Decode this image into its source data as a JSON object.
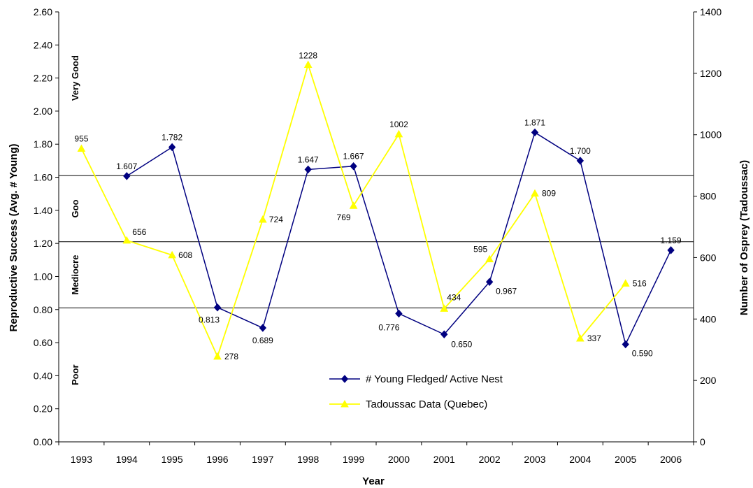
{
  "chart_data": {
    "type": "line",
    "xlabel": "Year",
    "ylabel_left": "Reproductive Success (Avg. # Young)",
    "ylabel_right": "Number of Osprey (Tadoussac)",
    "categories": [
      "1993",
      "1994",
      "1995",
      "1996",
      "1997",
      "1998",
      "1999",
      "2000",
      "2001",
      "2002",
      "2003",
      "2004",
      "2005",
      "2006"
    ],
    "ylim_left": [
      0,
      2.6
    ],
    "yticks_left": [
      "0.00",
      "0.20",
      "0.40",
      "0.60",
      "0.80",
      "1.00",
      "1.20",
      "1.40",
      "1.60",
      "1.80",
      "2.00",
      "2.20",
      "2.40",
      "2.60"
    ],
    "ylim_right": [
      0,
      1400
    ],
    "yticks_right": [
      "0",
      "200",
      "400",
      "600",
      "800",
      "1000",
      "1200",
      "1400"
    ],
    "grid": false,
    "legend_position": "center-bottom",
    "bands": {
      "thresholds": [
        0.81,
        1.21,
        1.61
      ],
      "labels": [
        "Poor",
        "Mediocre",
        "Goo",
        "Very Good"
      ]
    },
    "series": [
      {
        "name": "# Young Fledged/ Active Nest",
        "axis": "left",
        "color": "#000080",
        "marker": "diamond",
        "x": [
          "1994",
          "1995",
          "1996",
          "1997",
          "1998",
          "1999",
          "2000",
          "2001",
          "2002",
          "2003",
          "2004",
          "2005",
          "2006"
        ],
        "values": [
          1.607,
          1.782,
          0.813,
          0.689,
          1.647,
          1.667,
          0.776,
          0.65,
          0.967,
          1.871,
          1.7,
          0.59,
          1.159
        ],
        "labels": [
          "1.607",
          "1.782",
          "0.813",
          "0.689",
          "1.647",
          "1.667",
          "0.776",
          "0.650",
          "0.967",
          "1.871",
          "1.700",
          "0.590",
          "1.159"
        ]
      },
      {
        "name": "Tadoussac Data (Quebec)",
        "axis": "right",
        "color": "#ffff00",
        "marker": "triangle",
        "x": [
          "1993",
          "1994",
          "1995",
          "1996",
          "1997",
          "1998",
          "1999",
          "2000",
          "2001",
          "2002",
          "2003",
          "2004",
          "2005"
        ],
        "values": [
          955,
          656,
          608,
          278,
          724,
          1228,
          769,
          1002,
          434,
          595,
          809,
          337,
          516
        ],
        "labels": [
          "955",
          "656",
          "608",
          "278",
          "724",
          "1228",
          "769",
          "1002",
          "434",
          "595",
          "809",
          "337",
          "516"
        ]
      }
    ]
  }
}
